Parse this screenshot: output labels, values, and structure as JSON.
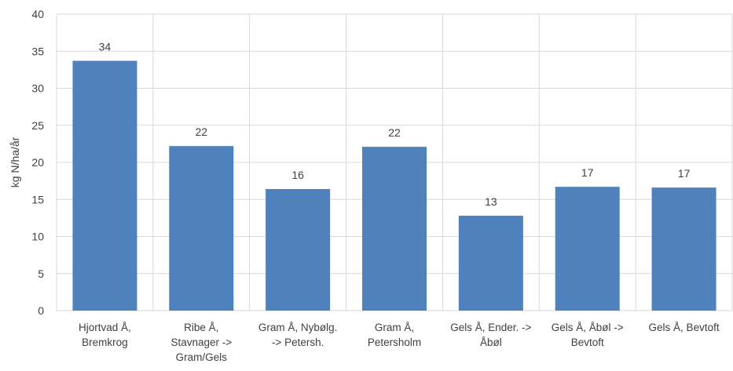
{
  "chart_data": {
    "type": "bar",
    "title": "",
    "xlabel": "",
    "ylabel": "kg N/ha/år",
    "ylim": [
      0,
      40
    ],
    "yticks": [
      0,
      5,
      10,
      15,
      20,
      25,
      30,
      35,
      40
    ],
    "grid": "major gridlines on both axes",
    "legend": "none",
    "categories": [
      [
        "Hjortvad Å,",
        "Bremkrog"
      ],
      [
        "Ribe Å,",
        "Stavnager ->",
        "Gram/Gels"
      ],
      [
        "Gram Å, Nybølg.",
        "-> Petersh."
      ],
      [
        "Gram Å,",
        "Petersholm"
      ],
      [
        "Gels Å, Ender. ->",
        "Åbøl"
      ],
      [
        "Gels Å, Åbøl ->",
        "Bevtoft"
      ],
      [
        "Gels Å, Bevtoft"
      ]
    ],
    "values": [
      33.7,
      22.2,
      16.4,
      22.1,
      12.8,
      16.7,
      16.6
    ],
    "data_labels": [
      "34",
      "22",
      "16",
      "22",
      "13",
      "17",
      "17"
    ],
    "colors": {
      "bar": "#4f81bd",
      "grid": "#d9d9d9",
      "text": "#404040"
    }
  }
}
